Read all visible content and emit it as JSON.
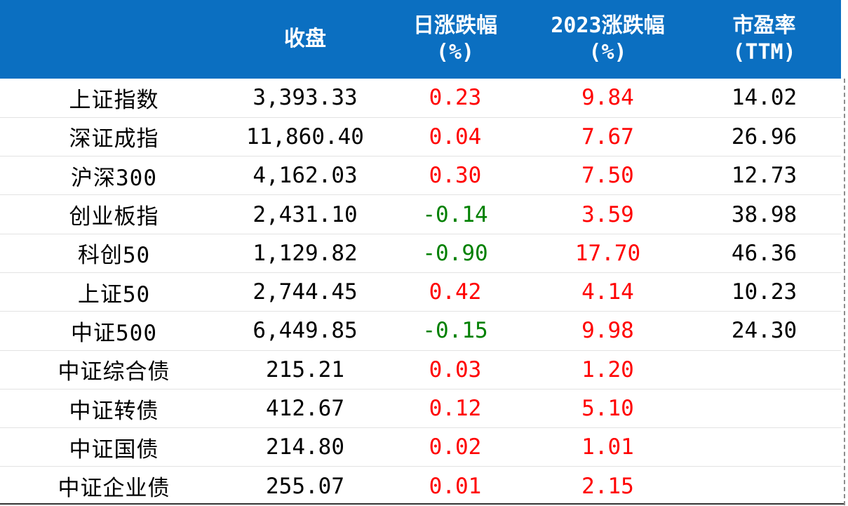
{
  "colors": {
    "header_bg": "#0b6fc1",
    "header_text": "#ffffff",
    "positive": "#ff0000",
    "negative": "#008000",
    "text": "#000000"
  },
  "header": {
    "name": "",
    "close": "收盘",
    "daily_change": [
      "日涨跌幅",
      "(%)"
    ],
    "ytd_change": [
      "2023涨跌幅",
      "(%)"
    ],
    "pe": [
      "市盈率",
      "(TTM)"
    ]
  },
  "rows": [
    {
      "name": "上证指数",
      "close": "3,393.33",
      "daily": "0.23",
      "daily_sign": "pos",
      "ytd": "9.84",
      "ytd_sign": "pos",
      "pe": "14.02"
    },
    {
      "name": "深证成指",
      "close": "11,860.40",
      "daily": "0.04",
      "daily_sign": "pos",
      "ytd": "7.67",
      "ytd_sign": "pos",
      "pe": "26.96"
    },
    {
      "name": "沪深300",
      "close": "4,162.03",
      "daily": "0.30",
      "daily_sign": "pos",
      "ytd": "7.50",
      "ytd_sign": "pos",
      "pe": "12.73"
    },
    {
      "name": "创业板指",
      "close": "2,431.10",
      "daily": "-0.14",
      "daily_sign": "neg",
      "ytd": "3.59",
      "ytd_sign": "pos",
      "pe": "38.98"
    },
    {
      "name": "科创50",
      "close": "1,129.82",
      "daily": "-0.90",
      "daily_sign": "neg",
      "ytd": "17.70",
      "ytd_sign": "pos",
      "pe": "46.36"
    },
    {
      "name": "上证50",
      "close": "2,744.45",
      "daily": "0.42",
      "daily_sign": "pos",
      "ytd": "4.14",
      "ytd_sign": "pos",
      "pe": "10.23"
    },
    {
      "name": "中证500",
      "close": "6,449.85",
      "daily": "-0.15",
      "daily_sign": "neg",
      "ytd": "9.98",
      "ytd_sign": "pos",
      "pe": "24.30"
    },
    {
      "name": "中证综合债",
      "close": "215.21",
      "daily": "0.03",
      "daily_sign": "pos",
      "ytd": "1.20",
      "ytd_sign": "pos",
      "pe": ""
    },
    {
      "name": "中证转债",
      "close": "412.67",
      "daily": "0.12",
      "daily_sign": "pos",
      "ytd": "5.10",
      "ytd_sign": "pos",
      "pe": ""
    },
    {
      "name": "中证国债",
      "close": "214.80",
      "daily": "0.02",
      "daily_sign": "pos",
      "ytd": "1.01",
      "ytd_sign": "pos",
      "pe": ""
    },
    {
      "name": "中证企业债",
      "close": "255.07",
      "daily": "0.01",
      "daily_sign": "pos",
      "ytd": "2.15",
      "ytd_sign": "pos",
      "pe": ""
    }
  ]
}
